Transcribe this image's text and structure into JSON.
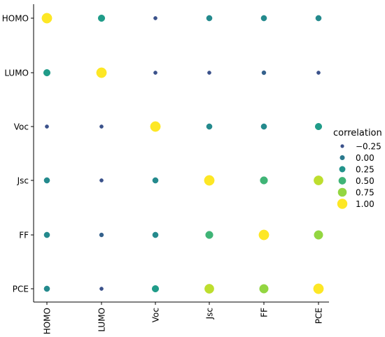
{
  "chart_data": {
    "type": "scatter",
    "title": "",
    "xlabel": "",
    "ylabel": "",
    "variables": [
      "HOMO",
      "LUMO",
      "Voc",
      "Jsc",
      "FF",
      "PCE"
    ],
    "legend": {
      "title": "correlation",
      "placement": "right",
      "entries": [
        {
          "label": "−0.25",
          "value": -0.25
        },
        {
          "label": "0.00",
          "value": 0.0
        },
        {
          "label": "0.25",
          "value": 0.25
        },
        {
          "label": "0.50",
          "value": 0.5
        },
        {
          "label": "0.75",
          "value": 0.75
        },
        {
          "label": "1.00",
          "value": 1.0
        }
      ]
    },
    "correlation_matrix": [
      [
        1.0,
        0.35,
        -0.25,
        0.15,
        0.15,
        0.15
      ],
      [
        0.35,
        1.0,
        -0.25,
        -0.25,
        -0.15,
        -0.3
      ],
      [
        -0.25,
        -0.25,
        1.0,
        0.15,
        0.15,
        0.35
      ],
      [
        0.15,
        -0.25,
        0.15,
        1.0,
        0.5,
        0.85
      ],
      [
        0.15,
        -0.15,
        0.15,
        0.5,
        1.0,
        0.75
      ],
      [
        0.15,
        -0.3,
        0.35,
        0.85,
        0.75,
        1.0
      ]
    ],
    "grid": false
  }
}
